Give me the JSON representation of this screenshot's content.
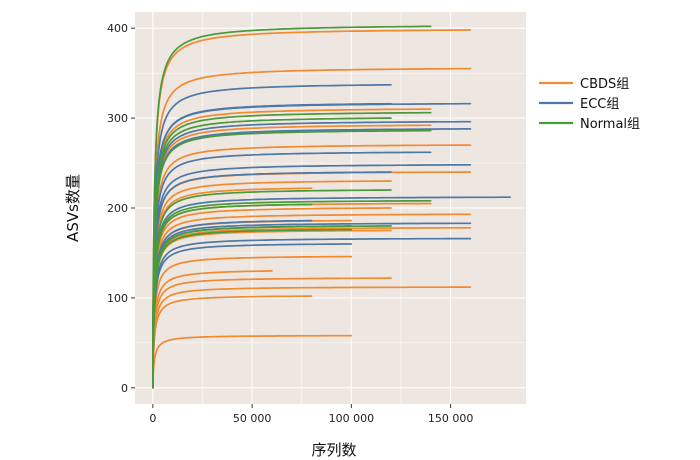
{
  "chart_data": {
    "type": "line",
    "title": "",
    "xlabel": "序列数",
    "ylabel": "ASVs数量",
    "xlim": [
      -9000,
      188000
    ],
    "ylim": [
      -18,
      418
    ],
    "x_ticks": [
      0,
      50000,
      100000,
      150000
    ],
    "x_tick_labels": [
      "0",
      "50 000",
      "100 000",
      "150 000"
    ],
    "y_ticks": [
      0,
      100,
      200,
      300,
      400
    ],
    "y_tick_labels": [
      "0",
      "100",
      "200",
      "300",
      "400"
    ],
    "grid": true,
    "legend_position": "right",
    "colors": {
      "CBDS组": "#f28a30",
      "ECC组": "#4e79a7",
      "Normal组": "#4a9a3a",
      "panel": "#ede6e1",
      "grid": "#ffffff"
    },
    "series": [
      {
        "name": "CBDS组",
        "curves": [
          {
            "xmax": 160000,
            "ymax": 398
          },
          {
            "xmax": 160000,
            "ymax": 355
          },
          {
            "xmax": 140000,
            "ymax": 310
          },
          {
            "xmax": 140000,
            "ymax": 292
          },
          {
            "xmax": 160000,
            "ymax": 270
          },
          {
            "xmax": 160000,
            "ymax": 240
          },
          {
            "xmax": 120000,
            "ymax": 230
          },
          {
            "xmax": 80000,
            "ymax": 222
          },
          {
            "xmax": 140000,
            "ymax": 205
          },
          {
            "xmax": 120000,
            "ymax": 200
          },
          {
            "xmax": 160000,
            "ymax": 193
          },
          {
            "xmax": 100000,
            "ymax": 186
          },
          {
            "xmax": 160000,
            "ymax": 178
          },
          {
            "xmax": 120000,
            "ymax": 175
          },
          {
            "xmax": 100000,
            "ymax": 146
          },
          {
            "xmax": 60000,
            "ymax": 130
          },
          {
            "xmax": 120000,
            "ymax": 122
          },
          {
            "xmax": 160000,
            "ymax": 112
          },
          {
            "xmax": 80000,
            "ymax": 102
          },
          {
            "xmax": 100000,
            "ymax": 58
          }
        ]
      },
      {
        "name": "ECC组",
        "curves": [
          {
            "xmax": 120000,
            "ymax": 337
          },
          {
            "xmax": 120000,
            "ymax": 316
          },
          {
            "xmax": 160000,
            "ymax": 316
          },
          {
            "xmax": 160000,
            "ymax": 296
          },
          {
            "xmax": 160000,
            "ymax": 288
          },
          {
            "xmax": 140000,
            "ymax": 262
          },
          {
            "xmax": 160000,
            "ymax": 248
          },
          {
            "xmax": 120000,
            "ymax": 240
          },
          {
            "xmax": 180000,
            "ymax": 212
          },
          {
            "xmax": 80000,
            "ymax": 186
          },
          {
            "xmax": 160000,
            "ymax": 183
          },
          {
            "xmax": 100000,
            "ymax": 180
          },
          {
            "xmax": 160000,
            "ymax": 166
          },
          {
            "xmax": 100000,
            "ymax": 160
          }
        ]
      },
      {
        "name": "Normal组",
        "curves": [
          {
            "xmax": 140000,
            "ymax": 402
          },
          {
            "xmax": 140000,
            "ymax": 306
          },
          {
            "xmax": 120000,
            "ymax": 300
          },
          {
            "xmax": 140000,
            "ymax": 286
          },
          {
            "xmax": 120000,
            "ymax": 220
          },
          {
            "xmax": 140000,
            "ymax": 208
          },
          {
            "xmax": 80000,
            "ymax": 204
          },
          {
            "xmax": 120000,
            "ymax": 180
          },
          {
            "xmax": 100000,
            "ymax": 176
          }
        ]
      }
    ]
  }
}
